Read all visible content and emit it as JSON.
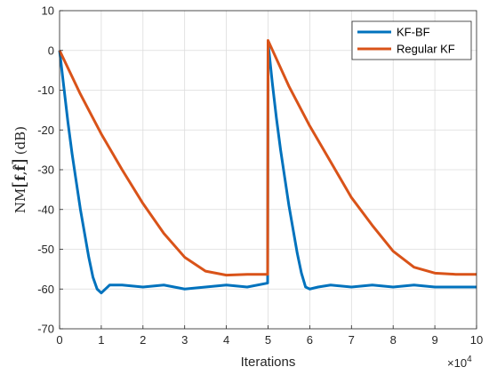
{
  "chart_data": {
    "type": "line",
    "title": "",
    "xlabel": "Iterations",
    "ylabel": "NM[f, f̂] (dB)",
    "ylabel_parts": {
      "prefix": "NM",
      "open": "[",
      "f": "f",
      "sep": ",",
      "fhat": "f̂",
      "close": "]",
      "unit": "(dB)"
    },
    "x_multiplier_label": "×10",
    "x_multiplier_exp": "4",
    "xlim": [
      0,
      10
    ],
    "ylim": [
      -70,
      10
    ],
    "xticks": [
      0,
      1,
      2,
      3,
      4,
      5,
      6,
      7,
      8,
      9,
      10
    ],
    "yticks": [
      10,
      0,
      -10,
      -20,
      -30,
      -40,
      -50,
      -60,
      -70
    ],
    "grid": true,
    "legend_position": "top-right",
    "series": [
      {
        "name": "KF-BF",
        "color": "#0072BD",
        "x": [
          0,
          0.1,
          0.2,
          0.3,
          0.4,
          0.5,
          0.6,
          0.7,
          0.8,
          0.9,
          1.0,
          1.2,
          1.5,
          2.0,
          2.5,
          3.0,
          3.5,
          4.0,
          4.5,
          4.99,
          5.0,
          5.1,
          5.2,
          5.3,
          5.4,
          5.5,
          5.6,
          5.7,
          5.8,
          5.9,
          6.0,
          6.2,
          6.5,
          7.0,
          7.5,
          8.0,
          8.5,
          9.0,
          9.5,
          10.0
        ],
        "y": [
          0,
          -9,
          -18,
          -26,
          -33,
          -40,
          -46,
          -52,
          -57,
          -60,
          -61,
          -59,
          -59,
          -59.5,
          -59,
          -60,
          -59.5,
          -59,
          -59.5,
          -58.5,
          2,
          -8,
          -17,
          -25,
          -32,
          -39,
          -45,
          -51,
          -56,
          -59.5,
          -60,
          -59.5,
          -59,
          -59.5,
          -59,
          -59.5,
          -59,
          -59.5,
          -59.5,
          -59.5
        ]
      },
      {
        "name": "Regular KF",
        "color": "#D95319",
        "x": [
          0,
          0.5,
          1.0,
          1.5,
          2.0,
          2.5,
          3.0,
          3.5,
          4.0,
          4.5,
          4.99,
          5.0,
          5.5,
          6.0,
          6.5,
          7.0,
          7.5,
          8.0,
          8.5,
          9.0,
          9.5,
          10.0
        ],
        "y": [
          0,
          -11,
          -21,
          -30,
          -38.5,
          -46,
          -52,
          -55.5,
          -56.5,
          -56.3,
          -56.3,
          2.5,
          -9,
          -19,
          -28,
          -37,
          -44,
          -50.5,
          -54.5,
          -56,
          -56.3,
          -56.3
        ]
      }
    ]
  }
}
